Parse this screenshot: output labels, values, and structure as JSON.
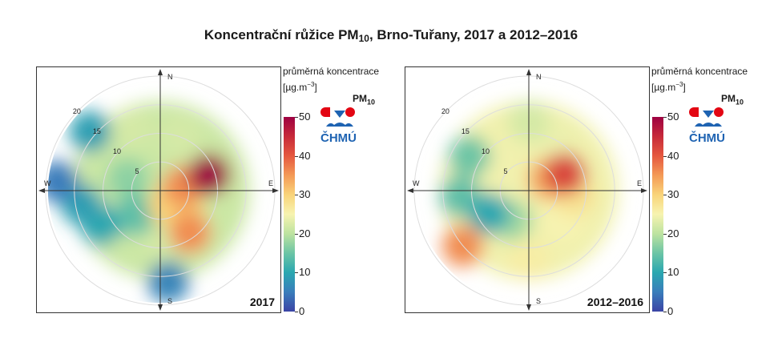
{
  "title": {
    "main": "Koncentrační růžice PM",
    "sub": "10",
    "rest": ", Brno-Tuřany, 2017 a 2012–2016"
  },
  "legend": {
    "title": "průměrná koncentrace",
    "unit_open": "[µg.m",
    "unit_sup": "−3",
    "unit_close": "]",
    "pollutant": "PM",
    "pollutant_sub": "10",
    "logo_text": "ČHMÚ"
  },
  "colors": {
    "scale": [
      "#3b44a5",
      "#3a7dbb",
      "#2aa7b0",
      "#6cc5a5",
      "#bde3a0",
      "#f7f3b0",
      "#f9d47a",
      "#f49a56",
      "#e5583f",
      "#c72a3a",
      "#9e0142"
    ],
    "logo_red": "#e30613",
    "logo_blue": "#1e63b2"
  },
  "chart_data": [
    {
      "type": "heatmap",
      "subtype": "polar concentration rose",
      "label": "2017",
      "directions": [
        "N",
        "E",
        "S",
        "W"
      ],
      "radial_ticks": [
        "5",
        "10",
        "15",
        "20"
      ],
      "radial_max": 20,
      "colorbar": {
        "ticks": [
          0,
          10,
          20,
          30,
          40,
          50
        ],
        "min": 0,
        "max": 50
      },
      "hotspots": [
        {
          "direction_deg": 72,
          "radius": 9,
          "value": 50
        },
        {
          "direction_deg": 80,
          "radius": 4,
          "value": 36
        },
        {
          "direction_deg": 150,
          "radius": 3,
          "value": 30
        },
        {
          "direction_deg": 145,
          "radius": 9,
          "value": 36
        },
        {
          "direction_deg": 125,
          "radius": 5,
          "value": 30
        },
        {
          "direction_deg": 20,
          "radius": 10,
          "value": 22
        },
        {
          "direction_deg": 335,
          "radius": 12,
          "value": 22
        },
        {
          "direction_deg": 180,
          "radius": 8,
          "value": 22
        },
        {
          "direction_deg": 275,
          "radius": 18,
          "value": 5
        },
        {
          "direction_deg": 310,
          "radius": 16,
          "value": 9
        },
        {
          "direction_deg": 260,
          "radius": 14,
          "value": 9
        },
        {
          "direction_deg": 240,
          "radius": 12,
          "value": 10
        },
        {
          "direction_deg": 175,
          "radius": 16,
          "value": 6
        },
        {
          "direction_deg": 225,
          "radius": 6,
          "value": 14
        },
        {
          "direction_deg": 290,
          "radius": 6,
          "value": 17
        }
      ]
    },
    {
      "type": "heatmap",
      "subtype": "polar concentration rose",
      "label": "2012–2016",
      "directions": [
        "N",
        "E",
        "S",
        "W"
      ],
      "radial_ticks": [
        "5",
        "10",
        "15",
        "20"
      ],
      "radial_max": 20,
      "colorbar": {
        "ticks": [
          0,
          10,
          20,
          30,
          40,
          50
        ],
        "min": 0,
        "max": 50
      },
      "hotspots": [
        {
          "direction_deg": 65,
          "radius": 7,
          "value": 42
        },
        {
          "direction_deg": 60,
          "radius": 4,
          "value": 34
        },
        {
          "direction_deg": 95,
          "radius": 8,
          "value": 28
        },
        {
          "direction_deg": 130,
          "radius": 8,
          "value": 25
        },
        {
          "direction_deg": 30,
          "radius": 10,
          "value": 24
        },
        {
          "direction_deg": 0,
          "radius": 12,
          "value": 22
        },
        {
          "direction_deg": 230,
          "radius": 15,
          "value": 36
        },
        {
          "direction_deg": 240,
          "radius": 8,
          "value": 10
        },
        {
          "direction_deg": 265,
          "radius": 12,
          "value": 14
        },
        {
          "direction_deg": 300,
          "radius": 12,
          "value": 15
        },
        {
          "direction_deg": 180,
          "radius": 12,
          "value": 26
        },
        {
          "direction_deg": 210,
          "radius": 6,
          "value": 18
        }
      ]
    }
  ]
}
